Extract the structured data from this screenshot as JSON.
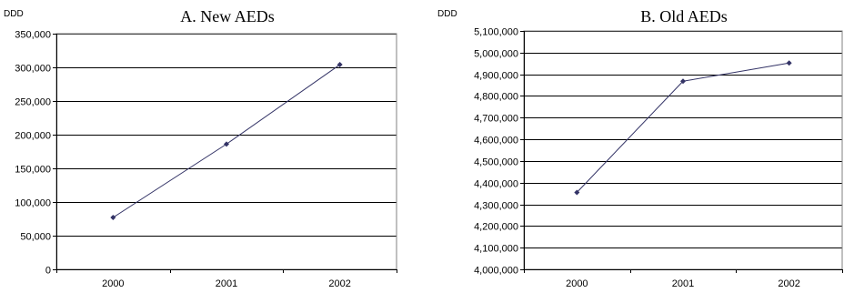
{
  "chart_data": [
    {
      "type": "line",
      "title": "A. New AEDs",
      "ylabel": "DDD",
      "xlabel": "",
      "categories": [
        "2000",
        "2001",
        "2002"
      ],
      "series": [
        {
          "values": [
            77000,
            186000,
            304000
          ]
        }
      ],
      "ylim": [
        0,
        350000
      ],
      "yticks": [
        "0",
        "50,000",
        "100,000",
        "150,000",
        "200,000",
        "250,000",
        "300,000",
        "350,000"
      ],
      "ystep": 50000,
      "grid": true,
      "legend": "none",
      "line_color": "#333366",
      "marker_color": "#333366"
    },
    {
      "type": "line",
      "title": "B. Old AEDs",
      "ylabel": "DDD",
      "xlabel": "",
      "categories": [
        "2000",
        "2001",
        "2002"
      ],
      "series": [
        {
          "values": [
            4355000,
            4868000,
            4952000
          ]
        }
      ],
      "ylim": [
        4000000,
        5100000
      ],
      "yticks": [
        "4,000,000",
        "4,100,000",
        "4,200,000",
        "4,300,000",
        "4,400,000",
        "4,500,000",
        "4,600,000",
        "4,700,000",
        "4,800,000",
        "4,900,000",
        "5,000,000",
        "5,100,000"
      ],
      "ystep": 100000,
      "grid": true,
      "legend": "none",
      "line_color": "#333366",
      "marker_color": "#333366"
    }
  ]
}
